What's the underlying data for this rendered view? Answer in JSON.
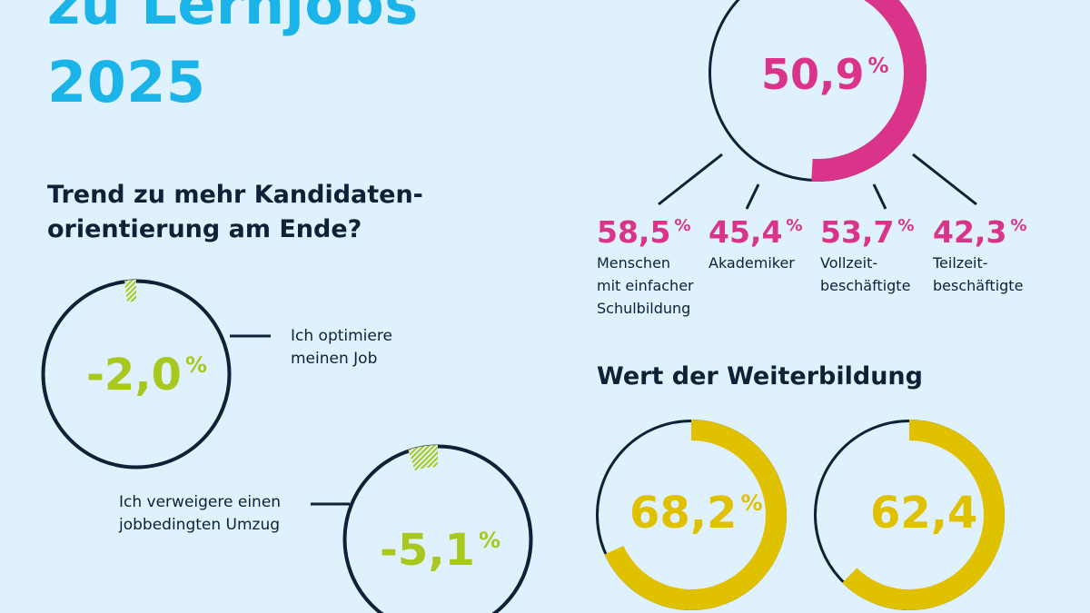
{
  "header": {
    "title_lines": [
      "zu Lernjobs",
      "2025"
    ]
  },
  "trend": {
    "heading_lines": [
      "Trend zu mehr Kandidaten-",
      "orientierung am Ende?"
    ],
    "items": [
      {
        "value": "-2,0",
        "unit": "%",
        "percent": -2.0,
        "label_lines": [
          "Ich optimiere",
          "meinen Job"
        ]
      },
      {
        "value": "-5,1",
        "unit": "%",
        "percent": -5.1,
        "label_lines": [
          "Ich verweigere einen",
          "jobbedingten Umzug"
        ]
      }
    ],
    "color": "#a8c81e"
  },
  "main_stat": {
    "value": "50,9",
    "unit": "%",
    "percent": 50.9,
    "color": "#d9338a",
    "breakdown": [
      {
        "value": "58,5",
        "unit": "%",
        "label_lines": [
          "Menschen",
          "mit einfacher",
          "Schulbildung"
        ]
      },
      {
        "value": "45,4",
        "unit": "%",
        "label_lines": [
          "Akademiker"
        ]
      },
      {
        "value": "53,7",
        "unit": "%",
        "label_lines": [
          "Vollzeit-",
          "beschäftigte"
        ]
      },
      {
        "value": "42,3",
        "unit": "%",
        "label_lines": [
          "Teilzeit-",
          "beschäftigte"
        ]
      }
    ]
  },
  "weiterbildung": {
    "heading": "Wert der Weiterbildung",
    "color": "#e0c100",
    "items": [
      {
        "value": "68,2",
        "unit": "%",
        "percent": 68.2
      },
      {
        "value": "62,4",
        "unit": "%",
        "percent": 62.4
      }
    ]
  },
  "colors": {
    "background": "#dff1fc",
    "title": "#1ab4e8",
    "text": "#0d2137"
  }
}
